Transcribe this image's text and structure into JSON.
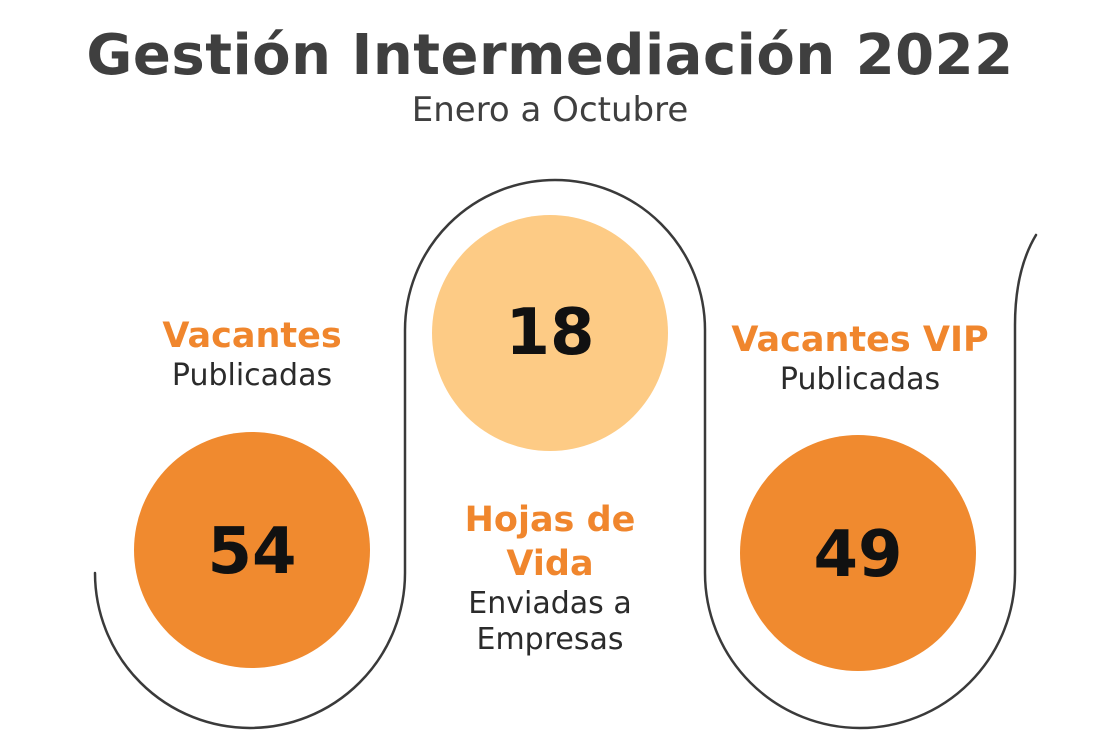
{
  "header": {
    "title": "Gestión Intermediación 2022",
    "subtitle": "Enero a Octubre"
  },
  "colors": {
    "accent": "#f0862d",
    "light_accent": "#fdcb85",
    "outline": "#3a3a3a",
    "title": "#3f3f3f"
  },
  "items": [
    {
      "value": "54",
      "label_strong": "Vacantes",
      "label_sub": "Publicadas"
    },
    {
      "value": "18",
      "label_strong_line1": "Hojas de",
      "label_strong_line2": "Vida",
      "label_sub_line1": "Enviadas a",
      "label_sub_line2": "Empresas"
    },
    {
      "value": "49",
      "label_strong": "Vacantes VIP",
      "label_sub": "Publicadas"
    }
  ]
}
